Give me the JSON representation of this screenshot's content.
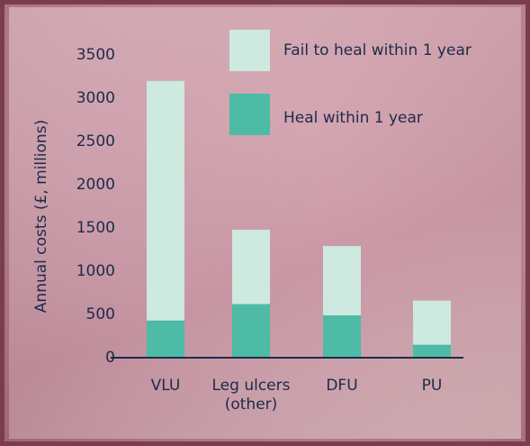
{
  "chart_data": {
    "type": "stacked_bar",
    "y_label": "Annual costs (£, millions)",
    "categories": [
      "VLU",
      "Leg ulcers (other)",
      "DFU",
      "PU"
    ],
    "series": [
      {
        "name": "Heal within 1 year",
        "color": "#4dbba5",
        "values": [
          430,
          620,
          490,
          150
        ]
      },
      {
        "name": "Fail to heal within 1 year",
        "color": "#cde9e0",
        "values": [
          2770,
          860,
          800,
          510
        ]
      }
    ],
    "ylim": [
      0,
      3500
    ],
    "yticks": [
      0,
      500,
      1000,
      1500,
      2000,
      2500,
      3000,
      3500
    ],
    "grid": false
  }
}
